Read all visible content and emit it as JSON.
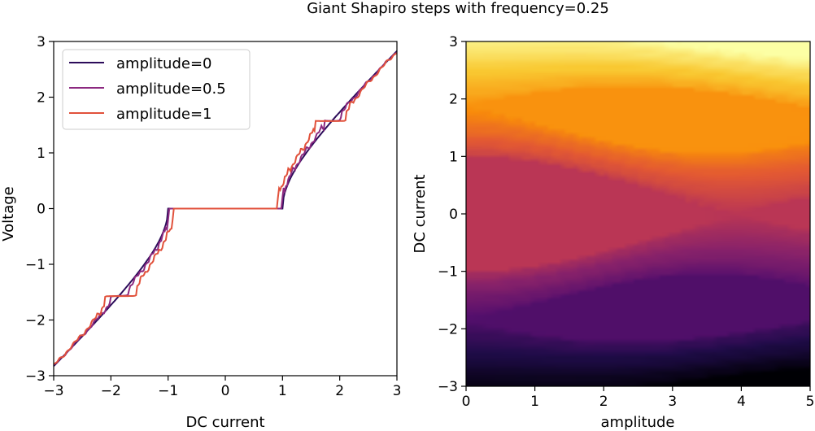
{
  "figure": {
    "suptitle": "Giant Shapiro steps with frequency=0.25"
  },
  "chart_data": [
    {
      "type": "line",
      "xlabel": "DC current",
      "ylabel": "Voltage",
      "xlim": [
        -3,
        3
      ],
      "ylim": [
        -3,
        3
      ],
      "xticks": [
        -3,
        -2,
        -1,
        0,
        1,
        2,
        3
      ],
      "yticks": [
        -3,
        -2,
        -1,
        0,
        1,
        2,
        3
      ],
      "legend_position": "upper-left",
      "frequency": 0.25,
      "series": [
        {
          "name": "amplitude=0",
          "amplitude": 0,
          "color": "#2c0c5a"
        },
        {
          "name": "amplitude=0.5",
          "amplitude": 0.5,
          "color": "#8c2980"
        },
        {
          "name": "amplitude=1",
          "amplitude": 1,
          "color": "#e1513b"
        }
      ]
    },
    {
      "type": "heatmap",
      "xlabel": "amplitude",
      "ylabel": "DC current",
      "xlim": [
        0,
        5
      ],
      "ylim": [
        -3,
        3
      ],
      "xticks": [
        0,
        1,
        2,
        3,
        4,
        5
      ],
      "yticks": [
        -3,
        -2,
        -1,
        0,
        1,
        2,
        3
      ],
      "colormap": "inferno",
      "value": "voltage",
      "value_range": [
        -3,
        3
      ],
      "frequency": 0.25
    }
  ]
}
